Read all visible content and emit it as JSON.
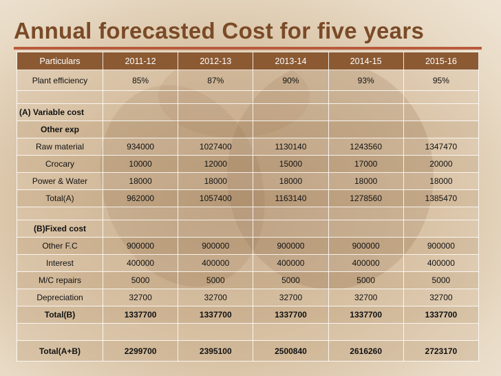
{
  "title": "Annual forecasted Cost for five years",
  "header": [
    "Particulars",
    "2011-12",
    "2012-13",
    "2013-14",
    "2014-15",
    "2015-16"
  ],
  "plant_efficiency": {
    "label": "Plant efficiency",
    "values": [
      "85%",
      "87%",
      "90%",
      "93%",
      "95%"
    ]
  },
  "variable_cost": {
    "section_label": "(A) Variable cost",
    "sub_label": "Other exp",
    "rows": [
      {
        "label": "Raw material",
        "values": [
          "934000",
          "1027400",
          "1130140",
          "1243560",
          "1347470"
        ]
      },
      {
        "label": "Crocary",
        "values": [
          "10000",
          "12000",
          "15000",
          "17000",
          "20000"
        ]
      },
      {
        "label": "Power & Water",
        "values": [
          "18000",
          "18000",
          "18000",
          "18000",
          "18000"
        ]
      },
      {
        "label": "Total(A)",
        "values": [
          "962000",
          "1057400",
          "1163140",
          "1278560",
          "1385470"
        ]
      }
    ]
  },
  "fixed_cost": {
    "section_label": "(B)Fixed cost",
    "rows": [
      {
        "label": "Other F.C",
        "values": [
          "900000",
          "900000",
          "900000",
          "900000",
          "900000"
        ]
      },
      {
        "label": "Interest",
        "values": [
          "400000",
          "400000",
          "400000",
          "400000",
          "400000"
        ]
      },
      {
        "label": "M/C repairs",
        "values": [
          "5000",
          "5000",
          "5000",
          "5000",
          "5000"
        ]
      },
      {
        "label": "Depreciation",
        "values": [
          "32700",
          "32700",
          "32700",
          "32700",
          "32700"
        ]
      }
    ],
    "total": {
      "label": "Total(B)",
      "values": [
        "1337700",
        "1337700",
        "1337700",
        "1337700",
        "1337700"
      ]
    }
  },
  "grand_total": {
    "label": "Total(A+B)",
    "values": [
      "2299700",
      "2395100",
      "2500840",
      "2616260",
      "2723170"
    ]
  }
}
